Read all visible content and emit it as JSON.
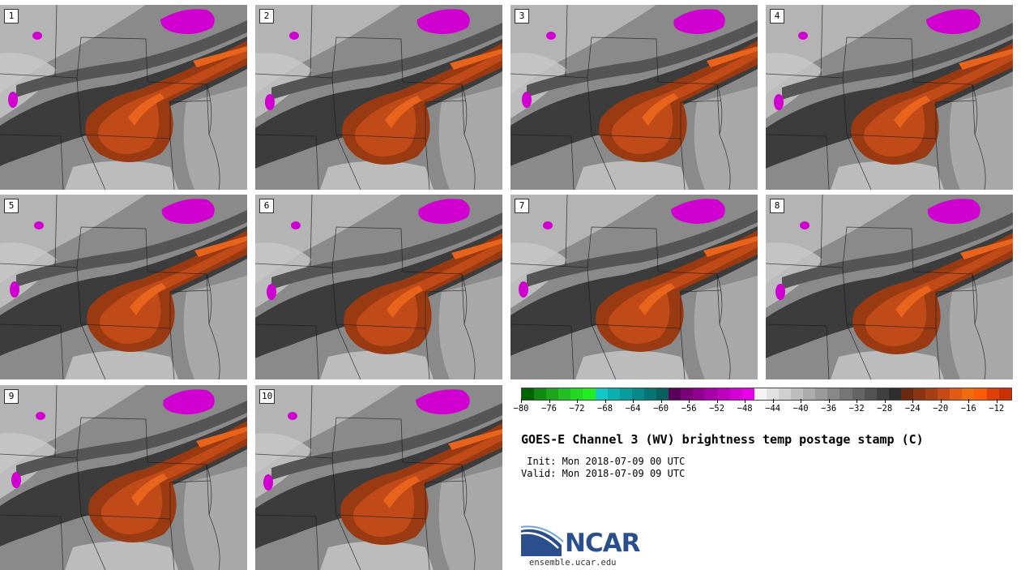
{
  "members": [
    "1",
    "2",
    "3",
    "4",
    "5",
    "6",
    "7",
    "8",
    "9",
    "10"
  ],
  "colorbar": {
    "colors": [
      "#006400",
      "#118a11",
      "#1ca61c",
      "#22c022",
      "#22d822",
      "#20ee20",
      "#10c8c8",
      "#0ab0b0",
      "#099c9c",
      "#088888",
      "#077474",
      "#066060",
      "#5a005a",
      "#7a007a",
      "#920092",
      "#a800a8",
      "#c000c0",
      "#d400d4",
      "#e800e8",
      "#f4f4f4",
      "#e2e2e2",
      "#d0d0d0",
      "#bebebe",
      "#acacac",
      "#9a9a9a",
      "#888888",
      "#767676",
      "#646464",
      "#525252",
      "#404040",
      "#2e2e2e",
      "#6a2a0e",
      "#8a3412",
      "#a63e14",
      "#c44a16",
      "#e25a14",
      "#f06a10",
      "#fa5a0a",
      "#e04008",
      "#c83006"
    ],
    "tick_labels": [
      "-80",
      "-76",
      "-72",
      "-68",
      "-64",
      "-60",
      "-56",
      "-52",
      "-48",
      "-44",
      "-40",
      "-36",
      "-32",
      "-28",
      "-24",
      "-20",
      "-16",
      "-12"
    ],
    "min": -80,
    "max": -10
  },
  "title": "GOES-E Channel 3 (WV) brightness temp postage stamp (C)",
  "init_line": " Init: Mon 2018-07-09 00 UTC",
  "valid_line": "Valid: Mon 2018-07-09 09 UTC",
  "logo": {
    "name": "NCAR",
    "url": "ensemble.ucar.edu"
  },
  "palette": {
    "gray_light": "#b4b4b4",
    "gray_mid": "#8a8a8a",
    "gray_dark": "#3c3c3c",
    "orange_dark": "#9a3a12",
    "orange_mid": "#c04a18",
    "orange_bright": "#e8641c",
    "magenta": "#d000d0",
    "ncar_blue": "#2b4f8c"
  }
}
